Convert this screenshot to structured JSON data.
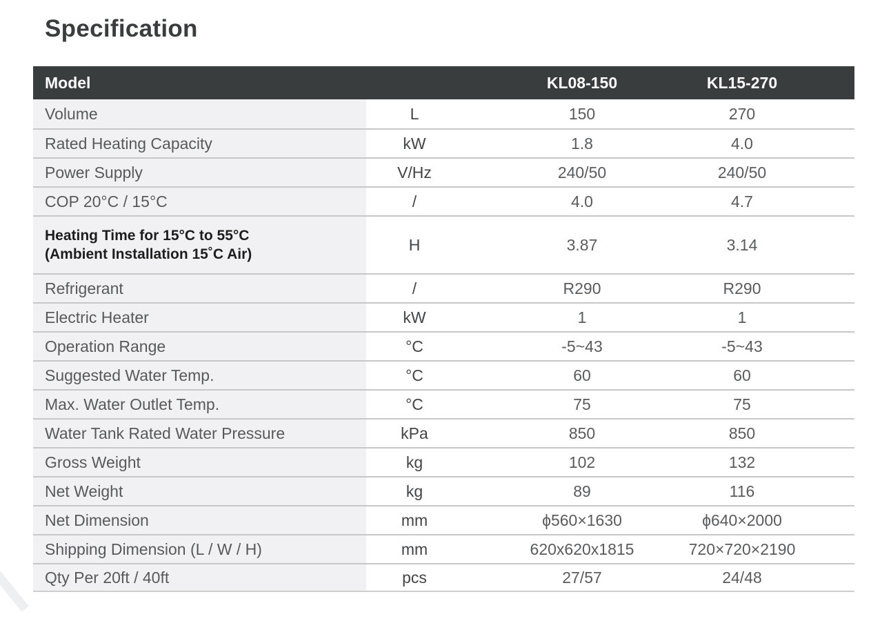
{
  "page": {
    "title": "Specification"
  },
  "table": {
    "header": {
      "model_label": "Model",
      "columns": [
        "KL08-150",
        "KL15-270"
      ]
    },
    "rows": [
      {
        "label": "Volume",
        "unit": "L",
        "values": [
          "150",
          "270"
        ]
      },
      {
        "label": "Rated Heating Capacity",
        "unit": "kW",
        "values": [
          "1.8",
          "4.0"
        ]
      },
      {
        "label": "Power Supply",
        "unit": "V/Hz",
        "values": [
          "240/50",
          "240/50"
        ]
      },
      {
        "label": "COP 20°C / 15°C",
        "unit": "/",
        "values": [
          "4.0",
          "4.7"
        ]
      },
      {
        "label": "Heating Time for 15°C to 55°C",
        "label_line2": "(Ambient Installation 15˚C Air)",
        "unit": "H",
        "values": [
          "3.87",
          "3.14"
        ],
        "bold": true
      },
      {
        "label": "Refrigerant",
        "unit": "/",
        "values": [
          "R290",
          "R290"
        ]
      },
      {
        "label": "Electric Heater",
        "unit": "kW",
        "values": [
          "1",
          "1"
        ]
      },
      {
        "label": "Operation Range",
        "unit": "°C",
        "values": [
          "-5~43",
          "-5~43"
        ]
      },
      {
        "label": "Suggested Water Temp.",
        "unit": "°C",
        "values": [
          "60",
          "60"
        ]
      },
      {
        "label": "Max. Water Outlet Temp.",
        "unit": "°C",
        "values": [
          "75",
          "75"
        ]
      },
      {
        "label": "Water Tank Rated Water Pressure",
        "unit": "kPa",
        "values": [
          "850",
          "850"
        ]
      },
      {
        "label": "Gross Weight",
        "unit": "kg",
        "values": [
          "102",
          "132"
        ]
      },
      {
        "label": "Net Weight",
        "unit": "kg",
        "values": [
          "89",
          "116"
        ]
      },
      {
        "label": "Net Dimension",
        "unit": "mm",
        "values": [
          "ϕ560×1630",
          "ϕ640×2000"
        ]
      },
      {
        "label": "Shipping Dimension (L / W / H)",
        "unit": "mm",
        "values": [
          "620x620x1815",
          "720×720×2190"
        ]
      },
      {
        "label": "Qty Per 20ft / 40ft",
        "unit": "pcs",
        "values": [
          "27/57",
          "24/48"
        ]
      }
    ]
  },
  "colors": {
    "header_bg": "#3a3d3d",
    "header_text": "#fdfdfd",
    "label_column_bg": "#f1f1f3",
    "row_separator": "#c6c7c9",
    "body_text": "#5a5b5d",
    "bold_row_text": "#1d1d1d",
    "title_text": "#3a3d3d",
    "page_bg": "#ffffff"
  }
}
